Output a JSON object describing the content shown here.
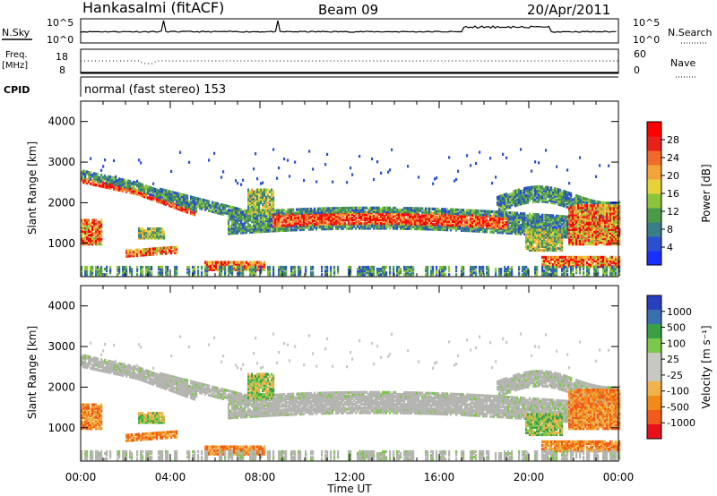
{
  "header": {
    "station": "Hankasalmi (fitACF)",
    "beam": "Beam 09",
    "date": "20/Apr/2011"
  },
  "top_panels": {
    "nsky_label": "N.Sky",
    "nsky_top": "10^5",
    "nsky_bottom": "10^0",
    "nsearch_label": "N.Search",
    "nsearch_top": "10^5",
    "nsearch_bottom": "10^0",
    "freq_label": "Freq.",
    "freq_unit": "[MHz]",
    "freq_top": "18",
    "freq_bottom": "8",
    "nave_label": "Nave",
    "nave_top": "60",
    "nave_bottom": "0",
    "cpid_label": "CPID",
    "cpid_text": "normal (fast stereo) 153"
  },
  "chart_data": [
    {
      "type": "heatmap",
      "panel": "power",
      "ylabel": "Slant Range [km]",
      "xlabel": "",
      "ylim": [
        180,
        4500
      ],
      "xlim_hours": [
        0,
        24
      ],
      "yticks": [
        1000,
        2000,
        3000,
        4000
      ],
      "colorbar_label": "Power [dB]",
      "colorbar_ticks": [
        "4",
        "8",
        "12",
        "16",
        "20",
        "24",
        "28"
      ],
      "colorbar_colors": [
        "#1a2fff",
        "#2c4fd0",
        "#3a7e88",
        "#4a9a4a",
        "#8cc43c",
        "#e6d23a",
        "#f4a23a",
        "#f06a2a",
        "#e8201c",
        "#ff0000"
      ]
    },
    {
      "type": "heatmap",
      "panel": "velocity",
      "ylabel": "Slant Range [km]",
      "xlabel": "Time UT",
      "ylim": [
        180,
        4500
      ],
      "xlim_hours": [
        0,
        24
      ],
      "yticks": [
        1000,
        2000,
        3000,
        4000
      ],
      "xticks": [
        "00:00",
        "04:00",
        "08:00",
        "12:00",
        "16:00",
        "20:00",
        "00:00"
      ],
      "colorbar_label": "Velocity [m s⁻¹]",
      "colorbar_ticks": [
        "1000",
        "500",
        "100",
        "25",
        "-25",
        "-100",
        "-500",
        "-1000"
      ],
      "colorbar_colors": [
        "#2a3fbf",
        "#3a6fb0",
        "#3aa048",
        "#7dc84a",
        "#c8c8c0",
        "#c8c8c0",
        "#f0b24a",
        "#f28a1a",
        "#f05a1a",
        "#e8101a"
      ]
    }
  ],
  "colors": {
    "ground_scatter": "#b4b4b0",
    "frame": "#000000"
  }
}
